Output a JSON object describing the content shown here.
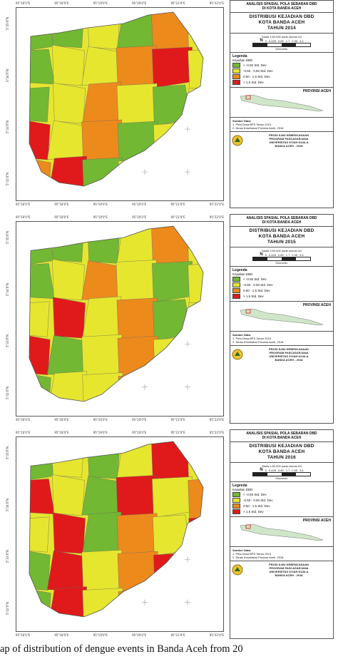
{
  "common": {
    "analysis_title": "ANALISIS SPASIAL POLA SEBARAN DBD",
    "analysis_subtitle": "DI KOTA BANDA ACEH",
    "scale_text": "Skala 1:60.000 pada ukuran A4",
    "scale_ticks": [
      "0",
      "0.425",
      "0.85",
      "1.7",
      "2.55",
      "3.4"
    ],
    "scale_unit": "Kilometer",
    "north": "N",
    "legend_title": "Legenda",
    "legend_subtitle": "Kejadian DBD",
    "legend_items": [
      {
        "label": "< -0.50 Std. Dev",
        "color": "#72b832"
      },
      {
        "label": "-0.50 - 0.50 Std. Dev",
        "color": "#e6e62e"
      },
      {
        "label": "0.50 - 1.5 Std. Dev",
        "color": "#ec8a1c"
      },
      {
        "label": "> 1.5 Std. Dev",
        "color": "#e01a1a"
      }
    ],
    "province_label": "PROVINSI ACEH",
    "source_title": "Sumber Data:",
    "source_items": [
      "1. Peta Desa BPS Tahun 2013",
      "2. Dinas Kesehatan Provinsi Aceh, 2018"
    ],
    "university_lines": [
      "PRODI ILMU KEBENCANAAN",
      "PROGRAM PASCASARJANA",
      "UNIVERSITAS SYIAH KUALA",
      "BANDA ACEH - 2018"
    ]
  },
  "panels": [
    {
      "title_line1": "DISTRIBUSI KEJADIAN DBD",
      "title_line2": "KOTA BANDA ACEH",
      "year_label": "TAHUN 2014"
    },
    {
      "title_line1": "DISTRIBUSI KEJADIAN DBD",
      "title_line2": "KOTA BANDA ACEH",
      "year_label": "TAHUN 2015"
    },
    {
      "title_line1": "DISTRIBUSI KEJADIAN DBD",
      "title_line2": "KOTA BANDA ACEH",
      "year_label": "TAHUN 2016"
    }
  ],
  "lon_ticks": [
    "95°16'0\"E",
    "95°18'0\"E",
    "95°19'0\"E",
    "95°20'0\"E",
    "95°21'0\"E",
    "95°22'0\"E"
  ],
  "lat_ticks": [
    "5°35'0\"N",
    "5°34'0\"N",
    "5°33'0\"N",
    "5°32'0\"N"
  ],
  "colors": {
    "green": "#72b832",
    "yellow": "#e6e62e",
    "orange": "#ec8a1c",
    "red": "#e01a1a",
    "grid": "#999999"
  },
  "caption": "ap of distribution of dengue events in Banda Aceh from 20"
}
